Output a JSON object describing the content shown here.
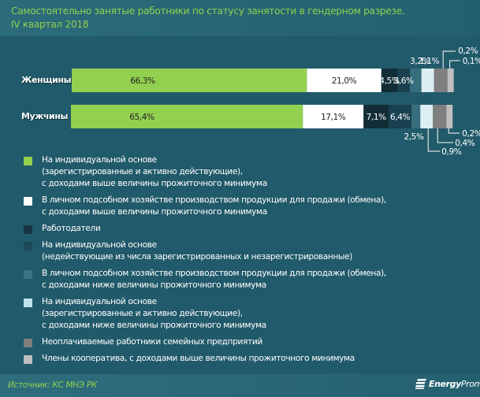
{
  "header": {
    "title_line1": "Самостоятельно занятые работники по статусу занятости в гендерном разрезе.",
    "title_line2": "IV квартал 2018"
  },
  "footer": {
    "source": "Источник: КС МНЭ РК",
    "logo_bold": "Energy",
    "logo_rest": "Prom"
  },
  "chart_data": {
    "type": "bar",
    "orientation": "horizontal",
    "stacked": true,
    "title": "Самостоятельно занятые работники по статусу занятости в гендерном разрезе. IV квартал 2018",
    "categories": [
      "Женщины",
      "Мужчины"
    ],
    "unit": "%",
    "series": [
      {
        "name": "На индивидуальной основе (зарегистрированные и активно действующие), с доходами выше величины прожиточного минимума",
        "color": "#92d050",
        "values": [
          66.3,
          65.4
        ],
        "labels": [
          "66,3%",
          "65,4%"
        ]
      },
      {
        "name": "В личном подсобном хозяйстве производством продукции для продажи (обмена), с доходами выше величины прожиточного минимума",
        "color": "#ffffff",
        "values": [
          21.0,
          17.1
        ],
        "labels": [
          "21,0%",
          "17,1%"
        ]
      },
      {
        "name": "Работодатели",
        "color": "#122d36",
        "values": [
          4.5,
          7.1
        ],
        "labels": [
          "4,5%",
          "7,1%"
        ]
      },
      {
        "name": "На индивидуальной основе (недействующие из числа зарегистрированных и незарегистрированные)",
        "color": "#1a4150",
        "values": [
          3.6,
          6.4
        ],
        "labels": [
          "3,6%",
          "6,4%"
        ]
      },
      {
        "name": "В личном подсобном хозяйстве производством продукции для продажи (обмена), с доходами ниже величины прожиточного минимума",
        "color": "#366e7c",
        "values": [
          3.2,
          2.5
        ],
        "labels": [
          "3,2%",
          "2,5%"
        ]
      },
      {
        "name": "На индивидуальной основе (зарегистрированные и активно действующие), с доходами ниже величины прожиточного минимума",
        "color": "#dcedf3",
        "values": [
          1.1,
          0.9
        ],
        "labels": [
          "1,1%",
          "0,9%"
        ]
      },
      {
        "name": "Неоплачиваемые работники семейных предприятий",
        "color": "#7f7f7f",
        "values": [
          0.2,
          0.4
        ],
        "labels": [
          "0,2%",
          "0,4%"
        ]
      },
      {
        "name": "Члены кооператива, с доходами выше величины прожиточного минимума",
        "color": "#bfbfbf",
        "values": [
          0.1,
          0.2
        ],
        "labels": [
          "0,1%",
          "0,2%"
        ]
      }
    ],
    "legend_position": "bottom",
    "grid": false,
    "xlim": [
      0,
      100
    ]
  },
  "legend": [
    {
      "label": "На индивидуальной основе\n(зарегистрированные и активно действующие),\nс доходами выше величины прожиточного минимума",
      "color": "#92d050"
    },
    {
      "label": "В личном подсобном хозяйстве производством продукции для продажи (обмена),\nс доходами выше величины прожиточного минимума",
      "color": "#ffffff"
    },
    {
      "label": "Работодатели",
      "color": "#163540"
    },
    {
      "label": "На индивидуальной основе\n(недействующие из числа зарегистрированных и незарегистрированные)",
      "color": "#1c4756"
    },
    {
      "label": "В личном подсобном хозяйстве производством продукции для продажи (обмена),\nс доходами ниже величины прожиточного минимума",
      "color": "#3a7583"
    },
    {
      "label": "На индивидуальной основе\n(зарегистрированные и активно действующие),\nс доходами ниже величины прожиточного минимума",
      "color": "#bfe3ec"
    },
    {
      "label": "Неоплачиваемые работники семейных предприятий",
      "color": "#7f7f7f"
    },
    {
      "label": "Члены кооператива, с доходами выше величины прожиточного минимума",
      "color": "#bfbfbf"
    }
  ]
}
